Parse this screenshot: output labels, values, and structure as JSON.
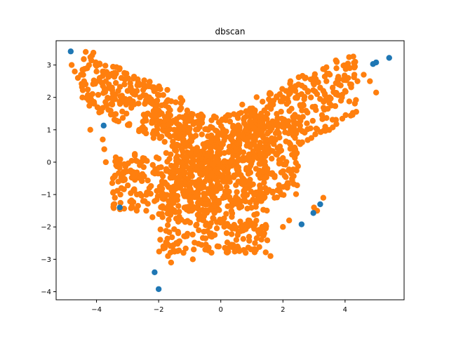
{
  "chart_data": {
    "type": "scatter",
    "title": "dbscan",
    "xlabel": "",
    "ylabel": "",
    "xlim": [
      -5.3,
      5.9
    ],
    "ylim": [
      -4.25,
      3.75
    ],
    "xticks": [
      -4,
      -2,
      0,
      2,
      4
    ],
    "yticks": [
      -4,
      -3,
      -2,
      -1,
      0,
      1,
      2,
      3
    ],
    "grid": false,
    "legend": "none",
    "colors": {
      "noise": "#1f77b4",
      "cluster": "#ff7f0e"
    },
    "series": [
      {
        "color_key": "noise",
        "x": [
          -4.83,
          -3.77,
          -3.25,
          -2.13,
          -2.0,
          2.6,
          2.98,
          3.2,
          4.9,
          5.0,
          5.42
        ],
        "y": [
          3.42,
          1.13,
          -1.4,
          -3.4,
          -3.92,
          -1.92,
          -1.57,
          -1.3,
          3.03,
          3.08,
          3.22
        ]
      },
      {
        "color_key": "cluster",
        "x": [
          -4.8,
          -4.7,
          -4.6,
          -4.5,
          -4.4,
          -4.3,
          -4.1,
          -4.0,
          -3.9,
          -3.8,
          -3.7,
          -3.6,
          -3.5,
          -3.4,
          -3.3,
          -3.2,
          -3.1,
          -3.0,
          -2.9,
          -2.8,
          -2.7,
          -2.6,
          -2.5,
          -2.4,
          -2.3,
          -2.2,
          -2.1,
          -2.0,
          -1.9,
          -1.8,
          -1.7,
          -1.6,
          -1.5,
          -1.4,
          -1.3,
          -1.2,
          -1.1,
          -1.0,
          -0.9,
          -0.8,
          -0.7,
          -0.6,
          -0.5,
          -0.4,
          -0.3,
          -0.2,
          -0.1,
          0.0,
          0.1,
          0.2,
          0.3,
          0.4,
          0.5,
          0.6,
          0.7,
          0.8,
          0.9,
          1.0,
          1.1,
          1.2,
          1.3,
          1.4,
          1.5,
          1.6,
          1.7,
          1.8,
          1.9,
          2.0,
          2.1,
          2.2,
          2.3,
          2.4,
          2.5,
          2.6,
          2.7,
          2.8,
          2.9,
          3.0,
          3.1,
          3.2,
          3.3,
          3.4,
          3.5,
          3.6,
          3.7,
          3.8,
          3.9,
          4.0,
          4.1,
          4.2,
          4.3,
          4.4,
          4.6,
          4.8,
          5.0,
          -4.2,
          -3.8,
          -3.75,
          -3.7,
          -3.3,
          -3.2,
          -2.7,
          -2.5,
          -2.4,
          -2.2,
          -1.85,
          -1.7,
          -1.6,
          -1.2,
          -0.9,
          -0.5,
          0.3,
          0.5,
          0.8,
          1.1,
          1.4,
          1.6,
          2.0,
          2.2,
          3.0,
          3.1,
          3.3
        ],
        "y": [
          3.0,
          2.8,
          2.6,
          2.7,
          2.5,
          2.9,
          3.38,
          2.8,
          2.6,
          2.8,
          2.5,
          2.4,
          2.3,
          2.7,
          2.2,
          2.6,
          2.4,
          2.2,
          2.3,
          2.1,
          2.2,
          2.0,
          2.4,
          1.9,
          2.0,
          1.8,
          1.7,
          1.6,
          1.5,
          1.4,
          1.3,
          1.2,
          1.0,
          0.9,
          0.8,
          0.7,
          0.6,
          0.5,
          0.4,
          0.3,
          0.2,
          0.1,
          0.0,
          -0.2,
          -0.4,
          -0.5,
          -0.6,
          -0.8,
          -0.6,
          -0.3,
          0.0,
          0.2,
          0.4,
          0.6,
          0.8,
          1.0,
          1.1,
          1.2,
          1.3,
          1.4,
          1.5,
          1.6,
          1.7,
          1.8,
          1.9,
          2.0,
          2.1,
          2.0,
          2.2,
          2.1,
          2.3,
          2.2,
          2.4,
          2.1,
          2.3,
          2.2,
          2.0,
          2.4,
          2.1,
          2.3,
          2.2,
          2.5,
          2.0,
          2.3,
          2.1,
          2.4,
          2.0,
          2.2,
          2.6,
          2.4,
          2.7,
          2.5,
          2.7,
          2.5,
          2.15,
          1.0,
          0.7,
          0.4,
          0.0,
          -0.6,
          -0.8,
          -1.0,
          -1.2,
          -1.5,
          -1.7,
          -2.6,
          -2.9,
          -3.1,
          -2.8,
          -3.0,
          -2.7,
          -2.6,
          -2.4,
          -2.8,
          -2.5,
          -2.2,
          -2.9,
          -2.0,
          -1.8,
          -1.4,
          -1.5,
          -1.1
        ]
      }
    ],
    "dense_regions": [
      {
        "x": [
          -4.5,
          -1.0
        ],
        "y": [
          1.0,
          2.7
        ],
        "slope": -0.45
      },
      {
        "x": [
          -3.5,
          0.0
        ],
        "y": [
          -1.5,
          0.3
        ],
        "slope": 0.0
      },
      {
        "x": [
          -2.0,
          1.5
        ],
        "y": [
          -2.8,
          -0.5
        ],
        "slope": 0.0
      },
      {
        "x": [
          0.5,
          4.4
        ],
        "y": [
          0.5,
          2.6
        ],
        "slope": 0.45
      },
      {
        "x": [
          -1.0,
          2.5
        ],
        "y": [
          -1.5,
          1.0
        ],
        "slope": 0.3
      },
      {
        "x": [
          -1.5,
          1.5
        ],
        "y": [
          -0.5,
          1.5
        ],
        "slope": 0.0
      }
    ]
  }
}
